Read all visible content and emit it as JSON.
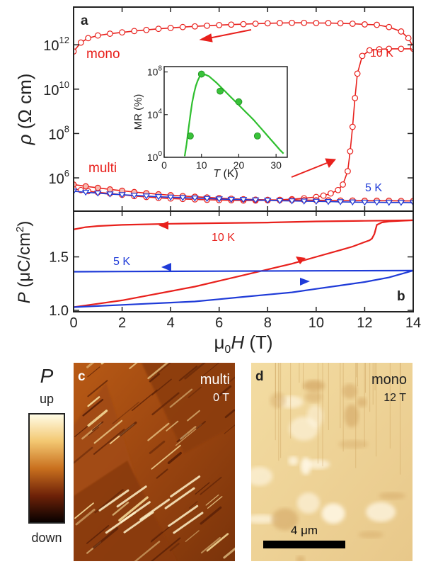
{
  "colors": {
    "red": "#e8201c",
    "blue": "#1f3bd8",
    "green": "#2fbf2f",
    "green_marker": "#39c23a",
    "axis": "#222222"
  },
  "chart_data": [
    {
      "panel": "a",
      "type": "line",
      "ylabel": "ρ (Ω cm)",
      "yscale": "log",
      "xlim": [
        0,
        14
      ],
      "ylim_log10": [
        4.5,
        13.7
      ],
      "y_ticks": [
        {
          "exp": 6,
          "label": "10",
          "sup": "6"
        },
        {
          "exp": 8,
          "label": "10",
          "sup": "8"
        },
        {
          "exp": 10,
          "label": "10",
          "sup": "10"
        },
        {
          "exp": 12,
          "label": "10",
          "sup": "12"
        }
      ],
      "annotations": {
        "mono": "mono",
        "multi": "multi",
        "t10": "10 K",
        "t5": "5 K"
      },
      "series": [
        {
          "label": "mono (10 K, sweep up)",
          "color": "red",
          "marker": "open-circle",
          "x": [
            0.0,
            0.3,
            0.6,
            1.0,
            1.5,
            2.0,
            2.5,
            3.0,
            3.5,
            4.0,
            4.5,
            5.0,
            5.5,
            6.0,
            6.5,
            7.0,
            7.5,
            8.0,
            8.5,
            9.0,
            9.5,
            10.0,
            10.3,
            10.6,
            10.9,
            11.1,
            11.3,
            11.4,
            11.5,
            11.6,
            11.7,
            11.9,
            12.2,
            12.6,
            13.0,
            13.5,
            14.0
          ],
          "log10y": [
            5.5,
            5.45,
            5.4,
            5.35,
            5.3,
            5.24,
            5.18,
            5.14,
            5.1,
            5.07,
            5.05,
            5.03,
            5.01,
            5.0,
            4.99,
            4.98,
            4.98,
            4.99,
            5.01,
            5.04,
            5.08,
            5.14,
            5.2,
            5.3,
            5.45,
            5.7,
            6.3,
            7.2,
            8.3,
            9.6,
            10.7,
            11.5,
            11.75,
            11.8,
            11.82,
            11.82,
            11.82
          ]
        },
        {
          "label": "mono (10 K, sweep down)",
          "color": "red",
          "marker": "open-circle",
          "x": [
            14.0,
            13.8,
            13.5,
            13.0,
            12.5,
            12.0,
            11.5,
            11.0,
            10.5,
            10.0,
            9.5,
            9.0,
            8.5,
            8.0,
            7.5,
            7.0,
            6.5,
            6.0,
            5.5,
            5.0,
            4.5,
            4.0,
            3.5,
            3.0,
            2.5,
            2.0,
            1.5,
            1.0,
            0.6,
            0.3,
            0.0
          ],
          "log10y": [
            11.9,
            12.3,
            12.6,
            12.8,
            12.9,
            12.92,
            12.95,
            12.97,
            12.98,
            12.98,
            12.99,
            12.99,
            12.98,
            12.97,
            12.95,
            12.93,
            12.91,
            12.89,
            12.86,
            12.83,
            12.8,
            12.76,
            12.72,
            12.67,
            12.62,
            12.56,
            12.5,
            12.42,
            12.3,
            12.1,
            11.7
          ]
        },
        {
          "label": "multi (10 K)",
          "color": "red",
          "marker": "filled-circle",
          "x": [
            0.0,
            0.5,
            1.0,
            1.5,
            2.0,
            2.5,
            3.0,
            3.5,
            4.0,
            4.5,
            5.0,
            5.5,
            6.0,
            6.5,
            7.0,
            7.5,
            8.0,
            8.5,
            9.0,
            9.5,
            10.0,
            10.5,
            11.0,
            11.5,
            12.0,
            12.5,
            13.0,
            13.5,
            14.0
          ],
          "log10y": [
            5.7,
            5.62,
            5.55,
            5.48,
            5.42,
            5.36,
            5.31,
            5.26,
            5.22,
            5.18,
            5.15,
            5.12,
            5.09,
            5.06,
            5.04,
            5.02,
            5.01,
            5.0,
            5.0,
            5.0,
            4.99,
            4.99,
            4.98,
            4.98,
            4.97,
            4.97,
            4.97,
            4.96,
            4.96
          ]
        },
        {
          "label": "multi (5 K)",
          "color": "blue",
          "marker": "open-triangle-down",
          "x": [
            0.0,
            0.5,
            1.0,
            1.5,
            2.0,
            2.5,
            3.0,
            3.5,
            4.0,
            4.5,
            5.0,
            5.5,
            6.0,
            6.5,
            7.0,
            7.5,
            8.0,
            8.5,
            9.0,
            9.5,
            10.0,
            10.5,
            11.0,
            11.5,
            12.0,
            12.5,
            13.0,
            13.5,
            14.0
          ],
          "log10y": [
            5.4,
            5.35,
            5.31,
            5.27,
            5.24,
            5.21,
            5.18,
            5.15,
            5.13,
            5.11,
            5.09,
            5.07,
            5.05,
            5.03,
            5.02,
            5.0,
            4.99,
            4.97,
            4.96,
            4.95,
            4.94,
            4.93,
            4.92,
            4.91,
            4.9,
            4.9,
            4.89,
            4.89,
            4.88
          ]
        }
      ]
    },
    {
      "panel": "a-inset",
      "type": "scatter",
      "xlabel": "T (K)",
      "ylabel": "MR (%)",
      "yscale": "log",
      "xlim": [
        0,
        33
      ],
      "ylim_log10": [
        0,
        8.5
      ],
      "x_ticks": [
        0,
        10,
        20,
        30
      ],
      "y_ticks": [
        {
          "exp": 0,
          "label": "10",
          "sup": "0"
        },
        {
          "exp": 4,
          "label": "10",
          "sup": "4"
        },
        {
          "exp": 8,
          "label": "10",
          "sup": "8"
        }
      ],
      "points": {
        "x": [
          7,
          10,
          15,
          20,
          25
        ],
        "log10y": [
          2.0,
          7.8,
          6.2,
          5.2,
          2.0
        ]
      },
      "fit": {
        "x": [
          5.5,
          6,
          6.5,
          7,
          7.5,
          8,
          8.5,
          9,
          9.5,
          10,
          11,
          12,
          13,
          14,
          15,
          16,
          17,
          18,
          19,
          20,
          21,
          22,
          23,
          24,
          25,
          26,
          27,
          28,
          29,
          30,
          31,
          32
        ],
        "log10y": [
          0.1,
          1.2,
          2.6,
          3.9,
          5.1,
          6.0,
          6.7,
          7.2,
          7.55,
          7.7,
          7.75,
          7.6,
          7.3,
          7.0,
          6.65,
          6.3,
          5.95,
          5.6,
          5.25,
          4.9,
          4.55,
          4.2,
          3.85,
          3.5,
          3.1,
          2.7,
          2.3,
          1.9,
          1.5,
          1.1,
          0.7,
          0.35
        ]
      }
    },
    {
      "panel": "b",
      "type": "line",
      "xlabel": "μ0H (T)",
      "ylabel": "P (μC/cm²)",
      "xlim": [
        0,
        14
      ],
      "ylim": [
        1.02,
        1.9
      ],
      "x_ticks": [
        0,
        2,
        4,
        6,
        8,
        10,
        12,
        14
      ],
      "y_ticks": [
        1.0,
        1.5
      ],
      "annotations": {
        "t10": "10 K",
        "t5": "5 K"
      },
      "series": [
        {
          "label": "10 K up",
          "color": "red",
          "x": [
            0,
            1,
            2,
            3,
            4,
            5,
            6,
            7,
            8,
            9,
            10,
            11,
            11.5,
            12,
            12.2,
            12.3,
            12.4,
            12.5,
            12.7,
            13,
            13.5,
            14
          ],
          "y": [
            1.06,
            1.09,
            1.12,
            1.16,
            1.2,
            1.24,
            1.29,
            1.34,
            1.39,
            1.44,
            1.5,
            1.56,
            1.59,
            1.63,
            1.645,
            1.66,
            1.7,
            1.78,
            1.8,
            1.81,
            1.815,
            1.82
          ]
        },
        {
          "label": "10 K down",
          "color": "red",
          "x": [
            14,
            12,
            10,
            8,
            6,
            4,
            2,
            1,
            0.5,
            0
          ],
          "y": [
            1.82,
            1.815,
            1.81,
            1.8,
            1.795,
            1.79,
            1.78,
            1.77,
            1.76,
            1.74
          ]
        },
        {
          "label": "5 K up",
          "color": "blue",
          "x": [
            0,
            1,
            2,
            3,
            4,
            5,
            6,
            7,
            8,
            9,
            10,
            11,
            12,
            13,
            14
          ],
          "y": [
            1.06,
            1.07,
            1.08,
            1.09,
            1.1,
            1.11,
            1.13,
            1.15,
            1.17,
            1.19,
            1.22,
            1.25,
            1.28,
            1.32,
            1.38
          ]
        },
        {
          "label": "5 K down",
          "color": "blue",
          "x": [
            14,
            10,
            6,
            2,
            0
          ],
          "y": [
            1.38,
            1.378,
            1.375,
            1.372,
            1.37
          ]
        }
      ]
    }
  ],
  "labels": {
    "panel_a": "a",
    "panel_b": "b",
    "panel_c": "c",
    "panel_d": "d",
    "legend_title": "P",
    "legend_up": "up",
    "legend_down": "down",
    "c_title": "multi",
    "c_field": "0 T",
    "d_title": "mono",
    "d_field": "12 T",
    "scalebar": "4 μm",
    "yaxis_a_rho": "ρ",
    "yaxis_a_unit": "(Ω cm)",
    "yaxis_b_p": "P",
    "yaxis_b_unit": "(μC/cm",
    "yaxis_b_sup": "2",
    "yaxis_b_close": ")",
    "xaxis_mu": "μ",
    "xaxis_sub": "0",
    "xaxis_h": "H",
    "xaxis_unit": "(T)"
  }
}
